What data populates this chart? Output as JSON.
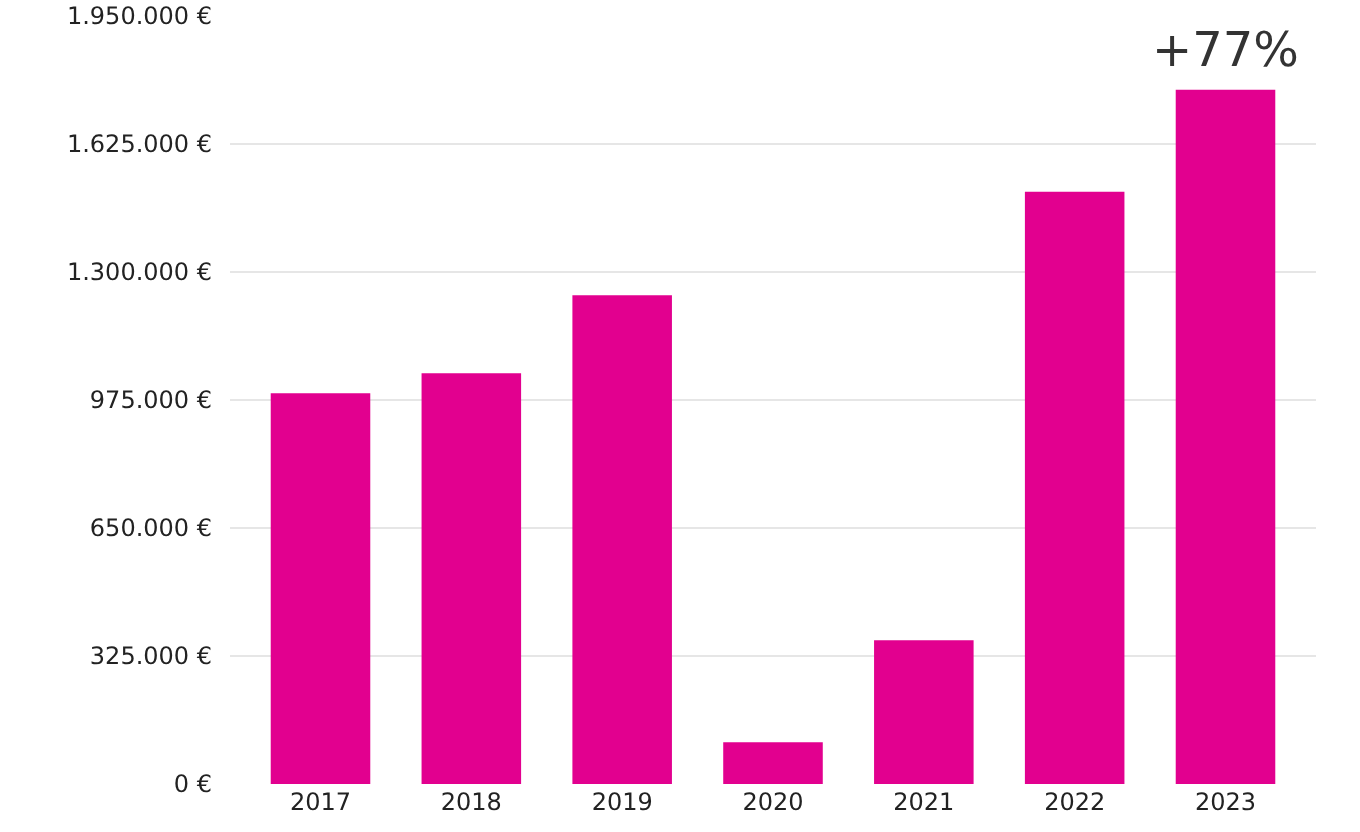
{
  "chart_data": {
    "type": "bar",
    "categories": [
      "2017",
      "2018",
      "2019",
      "2020",
      "2021",
      "2022",
      "2023"
    ],
    "values": [
      992000,
      1043000,
      1241000,
      106000,
      365000,
      1504000,
      1763000
    ],
    "color": "#e2008f",
    "ylim": [
      0,
      1950000
    ],
    "yticks": [
      {
        "value": 0,
        "label": "0 €"
      },
      {
        "value": 325000,
        "label": "325.000 €"
      },
      {
        "value": 650000,
        "label": "650.000 €"
      },
      {
        "value": 975000,
        "label": "975.000 €"
      },
      {
        "value": 1300000,
        "label": "1.300.000 €"
      },
      {
        "value": 1625000,
        "label": "1.625.000 €"
      },
      {
        "value": 1950000,
        "label": "1.950.000 €"
      }
    ],
    "grid": "y",
    "annotations": [
      {
        "text": "+77%",
        "x": "2023",
        "y": 1763000
      }
    ]
  }
}
